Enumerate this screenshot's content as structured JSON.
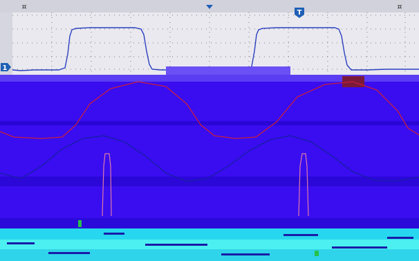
{
  "markers": {
    "left_marker": "¤",
    "right_marker": "¤",
    "trigger_label": "T",
    "channel_label": "1"
  },
  "colors": {
    "background": "#ffffff",
    "upper_panel": "#e3e3ea",
    "top_bar": "#cfcfda",
    "grid": "#8a8a8a",
    "trace_blue": "#2b3fbf",
    "lower_panel": "#3808ee",
    "trace_red": "#c81e3c",
    "trace_blue_dark": "#1a1aa8",
    "cyan_bar": "#27d7ef",
    "cyan_bar_alt": "#4cf0f0",
    "trigger_marker": "#1f5fb5"
  },
  "icons": [
    "left-cursor-icon",
    "right-cursor-icon",
    "trigger-position-icon",
    "trigger-level-icon",
    "channel-1-icon"
  ]
}
